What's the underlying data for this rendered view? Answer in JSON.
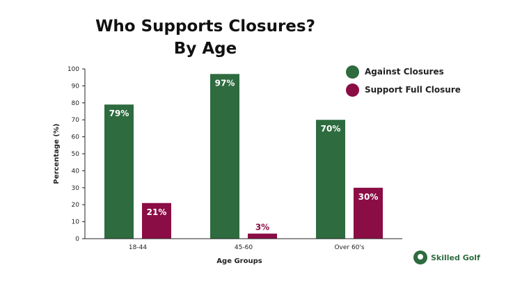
{
  "chart_data": {
    "type": "bar",
    "title_lines": [
      "Who Supports Closures?",
      "By Age"
    ],
    "xlabel": "Age Groups",
    "ylabel": "Percentage (%)",
    "ylim": [
      0,
      100
    ],
    "yticks": [
      0,
      10,
      20,
      30,
      40,
      50,
      60,
      70,
      80,
      90,
      100
    ],
    "categories": [
      "18-44",
      "45-60",
      "Over 60's"
    ],
    "series": [
      {
        "name": "Against Closures",
        "values": [
          79,
          97,
          70
        ],
        "labels": [
          "79%",
          "97%",
          "70%"
        ],
        "color": "#2e6b3f"
      },
      {
        "name": "Support Full Closure",
        "values": [
          21,
          3,
          30
        ],
        "labels": [
          "21%",
          "3%",
          "30%"
        ],
        "color": "#8b0d45"
      }
    ],
    "grid": false,
    "legend": "top-right"
  },
  "logo": {
    "text": "Skilled Golf",
    "icon": "golf-ball-icon"
  }
}
